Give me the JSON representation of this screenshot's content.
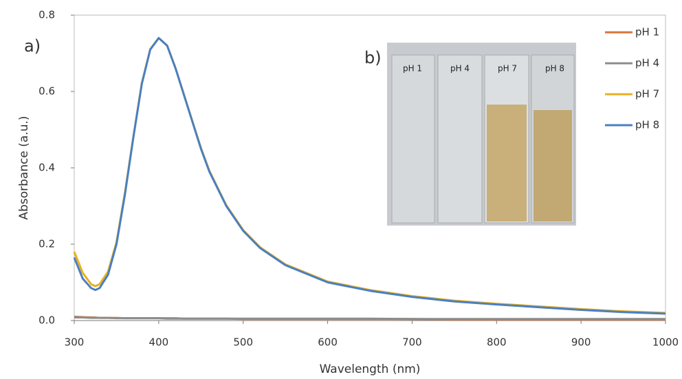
{
  "chart_data": {
    "type": "line",
    "x_label": "Wavelength (nm)",
    "y_label": "Absorbance (a.u.)",
    "panel_label": "a)",
    "x": [
      300,
      310,
      320,
      325,
      330,
      340,
      350,
      360,
      370,
      380,
      390,
      400,
      410,
      420,
      430,
      440,
      450,
      460,
      480,
      500,
      520,
      550,
      600,
      650,
      700,
      750,
      800,
      850,
      900,
      950,
      1000
    ],
    "series": [
      {
        "name": "pH 1",
        "color": "#d9753a",
        "values": [
          0.01,
          0.009,
          0.008,
          0.008,
          0.007,
          0.007,
          0.007,
          0.006,
          0.006,
          0.006,
          0.006,
          0.006,
          0.005,
          0.005,
          0.005,
          0.005,
          0.005,
          0.005,
          0.005,
          0.004,
          0.004,
          0.004,
          0.004,
          0.004,
          0.004,
          0.003,
          0.003,
          0.003,
          0.003,
          0.003,
          0.003
        ]
      },
      {
        "name": "pH 4",
        "color": "#8c8c8c",
        "values": [
          0.008,
          0.008,
          0.007,
          0.007,
          0.007,
          0.007,
          0.006,
          0.006,
          0.006,
          0.006,
          0.006,
          0.006,
          0.006,
          0.006,
          0.005,
          0.005,
          0.005,
          0.005,
          0.005,
          0.005,
          0.005,
          0.005,
          0.005,
          0.005,
          0.004,
          0.004,
          0.004,
          0.004,
          0.004,
          0.004,
          0.004
        ]
      },
      {
        "name": "pH 7",
        "color": "#e8b020",
        "values": [
          0.18,
          0.125,
          0.095,
          0.09,
          0.095,
          0.128,
          0.205,
          0.335,
          0.482,
          0.622,
          0.711,
          0.74,
          0.72,
          0.661,
          0.591,
          0.521,
          0.452,
          0.392,
          0.302,
          0.237,
          0.192,
          0.147,
          0.102,
          0.08,
          0.064,
          0.052,
          0.044,
          0.037,
          0.03,
          0.024,
          0.02
        ]
      },
      {
        "name": "pH 8",
        "color": "#4a7fc1",
        "values": [
          0.165,
          0.11,
          0.085,
          0.08,
          0.085,
          0.12,
          0.2,
          0.33,
          0.48,
          0.62,
          0.71,
          0.74,
          0.72,
          0.66,
          0.59,
          0.52,
          0.45,
          0.39,
          0.3,
          0.235,
          0.19,
          0.145,
          0.1,
          0.078,
          0.062,
          0.05,
          0.042,
          0.035,
          0.028,
          0.022,
          0.018
        ]
      }
    ],
    "xlim": [
      300,
      1000
    ],
    "xticks": [
      300,
      400,
      500,
      600,
      700,
      800,
      900,
      1000
    ],
    "ylim": [
      0,
      0.8
    ],
    "yticks": [
      {
        "value": 0,
        "label": "0.0"
      },
      0.2,
      0.4,
      0.6,
      0.8
    ],
    "grid": false,
    "legend": "upper right",
    "inset": {
      "label": "b)",
      "cuvette_labels": [
        "pH 1",
        "pH 4",
        "pH 7",
        "pH 8"
      ]
    }
  }
}
